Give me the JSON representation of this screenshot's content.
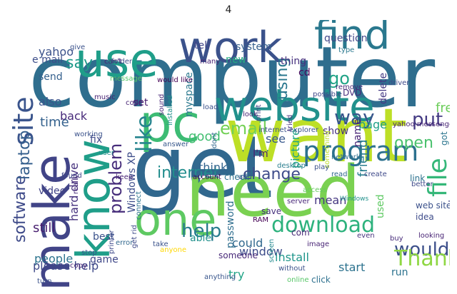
{
  "title": "4",
  "words": [
    {
      "text": "computer",
      "color": "#2f6e8e"
    },
    {
      "text": "get",
      "color": "#31688e"
    },
    {
      "text": "want",
      "color": "#bddf26"
    },
    {
      "text": "need",
      "color": "#7ad151"
    },
    {
      "text": "use",
      "color": "#1f9e89"
    },
    {
      "text": "work",
      "color": "#3b528b"
    },
    {
      "text": "find",
      "color": "#2a788e"
    },
    {
      "text": "website",
      "color": "#21918c"
    },
    {
      "text": "one",
      "color": "#5ec962"
    },
    {
      "text": "pc",
      "color": "#3dbc74"
    },
    {
      "text": "make",
      "color": "#414487"
    },
    {
      "text": "know",
      "color": "#1f9e89"
    },
    {
      "text": "program",
      "color": "#2c718e"
    },
    {
      "text": "download",
      "color": "#2db27d"
    },
    {
      "text": "file",
      "color": "#35b779"
    },
    {
      "text": "site",
      "color": "#3a548c"
    },
    {
      "text": "like",
      "color": "#25848e"
    },
    {
      "text": "software",
      "color": "#3e4a89"
    },
    {
      "text": "email",
      "color": "#73d056"
    },
    {
      "text": "help",
      "color": "#287c8e"
    },
    {
      "text": "internet",
      "color": "#228d8d"
    },
    {
      "text": "laptop",
      "color": "#355f8d"
    },
    {
      "text": "would",
      "color": "#3c4f8a"
    },
    {
      "text": "Thank",
      "color": "#8fd744"
    },
    {
      "text": "change",
      "color": "#3e4c8a"
    },
    {
      "text": "way",
      "color": "#39568c"
    },
    {
      "text": "problem",
      "color": "#472d7b"
    },
    {
      "text": "open",
      "color": "#4ac16d"
    },
    {
      "text": "using",
      "color": "#2a778e"
    },
    {
      "text": "go",
      "color": "#20a386"
    },
    {
      "text": "put",
      "color": "#443a83"
    },
    {
      "text": "say",
      "color": "#1f9a8a"
    },
    {
      "text": "good",
      "color": "#42be71"
    },
    {
      "text": "time",
      "color": "#34618d"
    },
    {
      "text": "please help",
      "color": "#3e4989"
    },
    {
      "text": "Windows XP",
      "color": "#3d4d8a"
    },
    {
      "text": "hard drive",
      "color": "#46327e"
    },
    {
      "text": "window",
      "color": "#3d4d8a"
    },
    {
      "text": "install",
      "color": "#1f968b"
    },
    {
      "text": "start",
      "color": "#2c728e"
    },
    {
      "text": "password",
      "color": "#2e6e8e"
    },
    {
      "text": "friend",
      "color": "#287d8e"
    },
    {
      "text": "picture",
      "color": "#20a486"
    },
    {
      "text": "page",
      "color": "#1fa088"
    },
    {
      "text": "free",
      "color": "#6ccd5a"
    },
    {
      "text": "mean",
      "color": "#453781"
    },
    {
      "text": "people",
      "color": "#2c738e"
    },
    {
      "text": "best",
      "color": "#3b528b"
    },
    {
      "text": "still",
      "color": "#481f70"
    },
    {
      "text": "able",
      "color": "#21918c"
    },
    {
      "text": "could",
      "color": "#31688e"
    },
    {
      "text": "try",
      "color": "#20a486"
    },
    {
      "text": "run",
      "color": "#2c728e"
    },
    {
      "text": "show",
      "color": "#46337f"
    },
    {
      "text": "name",
      "color": "#482576"
    },
    {
      "text": "used",
      "color": "#5ec962"
    },
    {
      "text": "system",
      "color": "#355f8d"
    },
    {
      "text": "question",
      "color": "#404688"
    },
    {
      "text": "thing",
      "color": "#46307e"
    },
    {
      "text": "new",
      "color": "#25ab82"
    },
    {
      "text": "tell",
      "color": "#414487"
    },
    {
      "text": "yahoo",
      "color": "#3b528b"
    },
    {
      "text": "e mail",
      "color": "#3d4e8a"
    },
    {
      "text": "send",
      "color": "#35608d"
    },
    {
      "text": "also",
      "color": "#3a548c"
    },
    {
      "text": "back",
      "color": "#472a7a"
    },
    {
      "text": "fix",
      "color": "#3e4989"
    },
    {
      "text": "set",
      "color": "#481d6f"
    },
    {
      "text": "see",
      "color": "#38588c"
    },
    {
      "text": "think",
      "color": "#32648e"
    },
    {
      "text": "I'm",
      "color": "#482173"
    },
    {
      "text": "got",
      "color": "#2b758e"
    },
    {
      "text": "anyone know",
      "color": "#414287"
    },
    {
      "text": "video",
      "color": "#414487"
    },
    {
      "text": "game",
      "color": "#3f4788"
    },
    {
      "text": "cd",
      "color": "#46085c"
    },
    {
      "text": "delete",
      "color": "#443983"
    },
    {
      "text": "myspace",
      "color": "#2a788e"
    },
    {
      "text": "com",
      "color": "#482878"
    },
    {
      "text": "save",
      "color": "#46327e"
    },
    {
      "text": "connect",
      "color": "#2c738e"
    },
    {
      "text": "check",
      "color": "#2d708e"
    },
    {
      "text": "someone",
      "color": "#482979"
    },
    {
      "text": "web site",
      "color": "#3b518b"
    },
    {
      "text": "DVD",
      "color": "#472c7a"
    },
    {
      "text": "link",
      "color": "#2c718e"
    },
    {
      "text": "idea",
      "color": "#3e4c8a"
    },
    {
      "text": "found",
      "color": "#3f4889"
    },
    {
      "text": "music",
      "color": "#482374"
    },
    {
      "text": "message",
      "color": "#56c667"
    },
    {
      "text": "something",
      "color": "#bddf26"
    },
    {
      "text": "network",
      "color": "#2e6f8e"
    },
    {
      "text": "screen",
      "color": "#23898e"
    },
    {
      "text": "anything",
      "color": "#39568c"
    },
    {
      "text": "online",
      "color": "#56c667"
    },
    {
      "text": "click",
      "color": "#2d708e"
    },
    {
      "text": "anyone",
      "color": "#ffd700"
    },
    {
      "text": "error",
      "color": "#31688e"
    },
    {
      "text": "take",
      "color": "#3b528b"
    },
    {
      "text": "stop",
      "color": "#3a548c"
    },
    {
      "text": "copy",
      "color": "#482475"
    },
    {
      "text": "turn",
      "color": "#3b518b"
    },
    {
      "text": "even",
      "color": "#46327e"
    },
    {
      "text": "better",
      "color": "#3e4a89"
    },
    {
      "text": "working",
      "color": "#3b528b"
    },
    {
      "text": "would like",
      "color": "#440154"
    },
    {
      "text": "remove",
      "color": "#482878"
    },
    {
      "text": "create",
      "color": "#3e4989"
    },
    {
      "text": "buy",
      "color": "#472c7a"
    },
    {
      "text": "looking",
      "color": "#482475"
    },
    {
      "text": "possible",
      "color": "#3f4788"
    },
    {
      "text": "give",
      "color": "#3b528b"
    },
    {
      "text": "type",
      "color": "#2a788e"
    },
    {
      "text": "code",
      "color": "#482475"
    },
    {
      "text": "folder",
      "color": "#3e4c8a"
    },
    {
      "text": "play",
      "color": "#3b528b"
    },
    {
      "text": "user",
      "color": "#21918c"
    },
    {
      "text": "add",
      "color": "#3a548c"
    },
    {
      "text": "keep",
      "color": "#482475"
    },
    {
      "text": "RAM",
      "color": "#440154"
    },
    {
      "text": "answer",
      "color": "#38588c"
    },
    {
      "text": "desktop",
      "color": "#287d8e"
    },
    {
      "text": "read",
      "color": "#31688e"
    },
    {
      "text": "tried",
      "color": "#46327e"
    },
    {
      "text": "print",
      "color": "#414487"
    },
    {
      "text": "server",
      "color": "#482878"
    },
    {
      "text": "access",
      "color": "#65cb5e"
    },
    {
      "text": "installed",
      "color": "#21918c"
    },
    {
      "text": "sound",
      "color": "#482878"
    },
    {
      "text": "account",
      "color": "#440154"
    },
    {
      "text": "get rid",
      "color": "#3e4a89"
    },
    {
      "text": "image",
      "color": "#482475"
    },
    {
      "text": "without",
      "color": "#3b528b"
    },
    {
      "text": "driver",
      "color": "#3e4989"
    },
    {
      "text": "many",
      "color": "#482374"
    },
    {
      "text": "load",
      "color": "#3b528b"
    },
    {
      "text": "look",
      "color": "#482878"
    },
    {
      "text": "can't",
      "color": "#482475"
    },
    {
      "text": "dont",
      "color": "#31688e"
    },
    {
      "text": "printer",
      "color": "#3e4989"
    },
    {
      "text": "day",
      "color": "#482878"
    },
    {
      "text": "really",
      "color": "#472c7a"
    },
    {
      "text": "yahoo messenger",
      "color": "#482475"
    },
    {
      "text": "internet explorer",
      "color": "#3b528b"
    },
    {
      "text": "Windows",
      "color": "#21918c"
    },
    {
      "text": "first",
      "color": "#482374"
    },
    {
      "text": "already",
      "color": "#482878"
    },
    {
      "text": "internet connection",
      "color": "#440154"
    }
  ]
}
